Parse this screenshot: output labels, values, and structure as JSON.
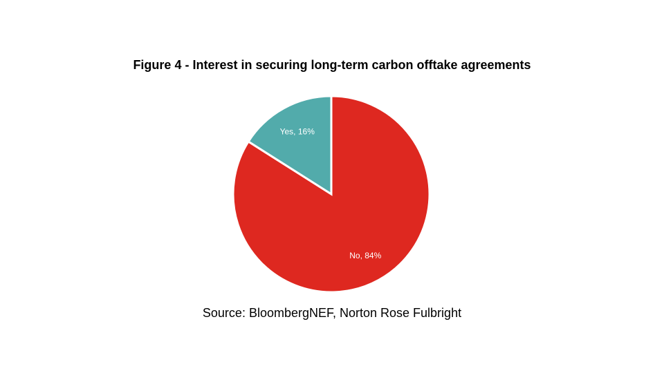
{
  "chart_data": {
    "type": "pie",
    "title": "Figure 4 - Interest in securing long-term carbon offtake agreements",
    "slices": [
      {
        "label": "No, 84%",
        "category": "No",
        "value": 84,
        "color": "#de2820"
      },
      {
        "label": "Yes, 16%",
        "category": "Yes",
        "value": 16,
        "color": "#52abab"
      }
    ],
    "source": "Source: BloombergNEF, Norton Rose Fulbright"
  }
}
